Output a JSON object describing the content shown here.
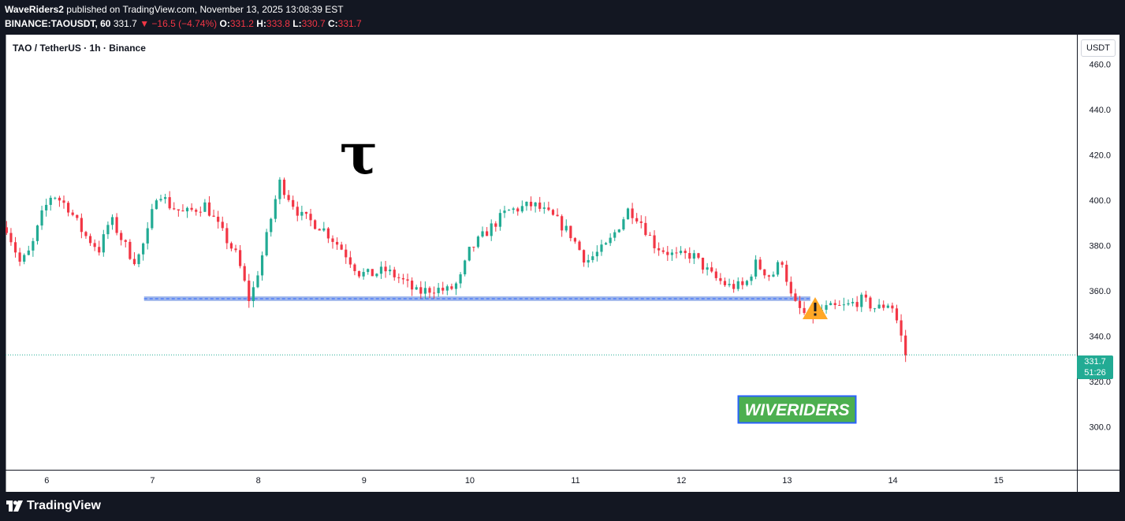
{
  "header": {
    "author": "WaveRiders2",
    "published_text": "published on TradingView.com, November 13, 2025 13:08:39 EST",
    "symbol_interval": "BINANCE:TAOUSDT, 60",
    "last_price": "331.7",
    "change_arrow": "▼",
    "change": "−16.5 (−4.74%)",
    "open_label": "O:",
    "open": "331.2",
    "high_label": "H:",
    "high": "333.8",
    "low_label": "L:",
    "low": "330.7",
    "close_label": "C:",
    "close": "331.7"
  },
  "chart": {
    "symbol_title": "TAO / TetherUS · 1h · Binance",
    "currency_label": "USDT",
    "price_tag": {
      "price": "331.7",
      "countdown": "51:26"
    },
    "logo_text": "WIVERIDERS",
    "tao_symbol": "τ",
    "warning_icon": "warning-triangle-icon"
  },
  "footer": {
    "brand": "TradingView"
  },
  "colors": {
    "up": "#22ab94",
    "down": "#f23645",
    "support": "#8ca8e8",
    "logo_bg": "#4caf50",
    "logo_border": "#2962ff"
  },
  "chart_data": {
    "type": "candlestick",
    "title": "TAO / TetherUS · 1h · Binance",
    "yaxis_label": "USDT",
    "ylim": [
      281,
      473
    ],
    "y_ticks": [
      460,
      440,
      420,
      400,
      380,
      360,
      340,
      320,
      300
    ],
    "x_ticks": [
      "6",
      "7",
      "8",
      "9",
      "10",
      "11",
      "12",
      "13",
      "14",
      "15"
    ],
    "xlim_days": [
      5.61,
      15.74
    ],
    "last_price": 331.7,
    "support_zone": {
      "low": 355.5,
      "high": 357.5,
      "from_day": 6.92,
      "to_day": 13.22
    },
    "path_days": [
      5.62,
      5.75,
      5.85,
      5.95,
      6.05,
      6.2,
      6.35,
      6.5,
      6.6,
      6.8,
      6.85,
      6.95,
      7.05,
      7.15,
      7.3,
      7.5,
      7.6,
      7.8,
      7.92,
      8.05,
      8.2,
      8.4,
      8.6,
      8.8,
      8.95,
      9.05,
      9.2,
      9.35,
      9.5,
      9.65,
      9.8,
      9.9,
      10.0,
      10.2,
      10.35,
      10.6,
      10.8,
      10.95,
      11.1,
      11.3,
      11.5,
      11.6,
      11.75,
      11.95,
      12.1,
      12.3,
      12.45,
      12.6,
      12.7,
      12.85,
      12.95,
      13.05,
      13.2,
      13.35,
      13.55,
      13.7,
      13.85,
      13.98,
      14.05,
      14.12
    ],
    "path_prices": [
      388,
      372,
      378,
      393,
      403,
      397,
      385,
      378,
      392,
      375,
      373,
      385,
      405,
      398,
      394,
      398,
      390,
      375,
      355,
      378,
      408,
      393,
      388,
      378,
      368,
      367,
      369,
      365,
      359,
      361,
      360,
      364,
      378,
      388,
      395,
      398,
      392,
      385,
      373,
      380,
      396,
      392,
      380,
      375,
      376,
      366,
      362,
      362,
      372,
      366,
      374,
      355,
      348,
      352,
      353,
      356,
      352,
      355,
      345,
      331.7
    ]
  }
}
